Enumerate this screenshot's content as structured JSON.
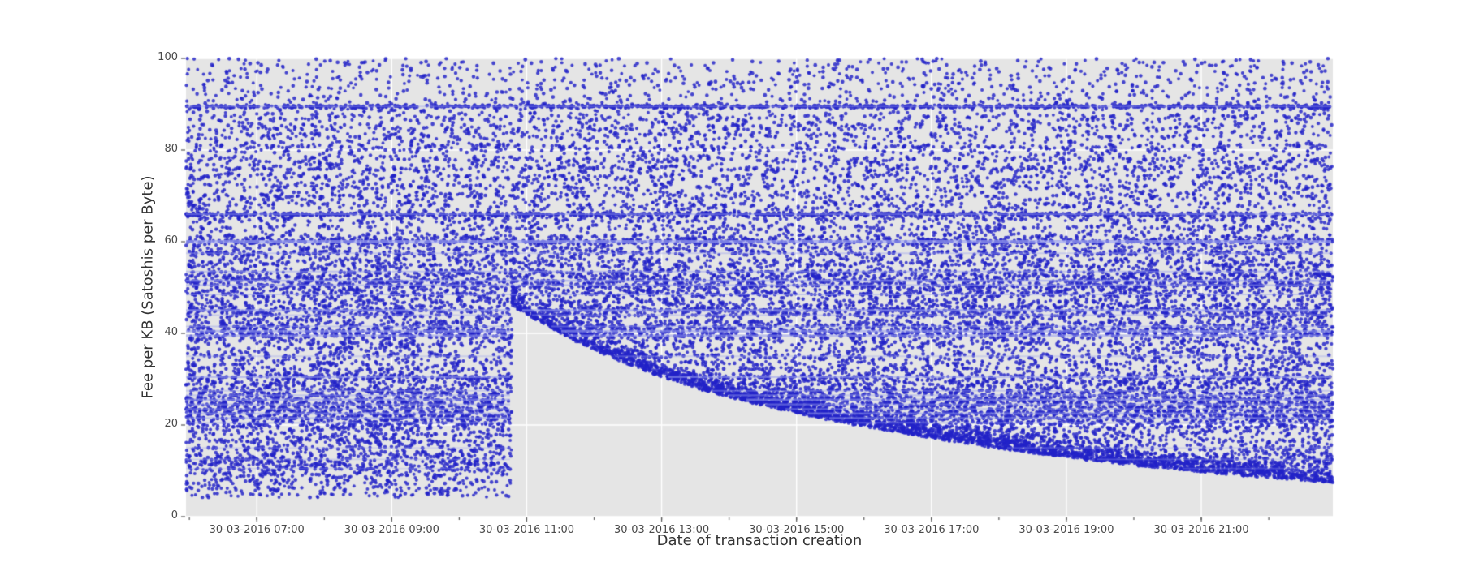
{
  "chart_data": {
    "type": "scatter",
    "title": "",
    "xlabel": "Date of transaction creation",
    "ylabel": "Fee per KB (Satoshis per Byte)",
    "x_date": "30-03-2016",
    "x_domain_hours": [
      5.95,
      22.95
    ],
    "ylim": [
      0,
      100
    ],
    "x_ticks": [
      {
        "hour": 7,
        "label": "30-03-2016 07:00"
      },
      {
        "hour": 9,
        "label": "30-03-2016 09:00"
      },
      {
        "hour": 11,
        "label": "30-03-2016 11:00"
      },
      {
        "hour": 13,
        "label": "30-03-2016 13:00"
      },
      {
        "hour": 15,
        "label": "30-03-2016 15:00"
      },
      {
        "hour": 17,
        "label": "30-03-2016 17:00"
      },
      {
        "hour": 19,
        "label": "30-03-2016 19:00"
      },
      {
        "hour": 21,
        "label": "30-03-2016 21:00"
      }
    ],
    "y_ticks": [
      {
        "value": 0,
        "label": "0"
      },
      {
        "value": 20,
        "label": "20"
      },
      {
        "value": 40,
        "label": "40"
      },
      {
        "value": 60,
        "label": "60"
      },
      {
        "value": 80,
        "label": "80"
      },
      {
        "value": 100,
        "label": "100"
      }
    ],
    "plot_bg": "#e5e5e5",
    "grid_color": "#ffffff",
    "marker_color": "#2222c8",
    "streak_color": "#9aa0ee",
    "marker_alpha": 0.82,
    "marker_radius": 2.1,
    "n_points": 30000,
    "edge_points": 2200,
    "uniform_fraction": 0.3,
    "min_fee": 4.2,
    "bands": [
      [
        89.5,
        6,
        0.18
      ],
      [
        87,
        1.2,
        0.5
      ],
      [
        85,
        1.5,
        0.5
      ],
      [
        83,
        1,
        0.5
      ],
      [
        80.5,
        2,
        0.5
      ],
      [
        78,
        1.5,
        0.45
      ],
      [
        76,
        1.8,
        0.45
      ],
      [
        74,
        1.2,
        0.45
      ],
      [
        72,
        1.5,
        0.45
      ],
      [
        70,
        1.8,
        0.5
      ],
      [
        68,
        1.2,
        0.4
      ],
      [
        66,
        6,
        0.2
      ],
      [
        65,
        1.8,
        0.4
      ],
      [
        63,
        1.2,
        0.4
      ],
      [
        61,
        1.5,
        0.4
      ],
      [
        60,
        5,
        0.35
      ],
      [
        58.5,
        1.5,
        0.4
      ],
      [
        57.5,
        2.5,
        0.35
      ],
      [
        56,
        1.5,
        0.4
      ],
      [
        55,
        2,
        0.35
      ],
      [
        53.5,
        2.5,
        0.35
      ],
      [
        52.5,
        2.5,
        0.35
      ],
      [
        51.5,
        3,
        0.3
      ],
      [
        50.5,
        3,
        0.3
      ],
      [
        49.5,
        2,
        0.35
      ],
      [
        48.5,
        2.5,
        0.35
      ],
      [
        47,
        1.5,
        0.4
      ],
      [
        46,
        2,
        0.35
      ],
      [
        45,
        4,
        0.3
      ],
      [
        44,
        2.5,
        0.35
      ],
      [
        42.5,
        2,
        0.4
      ],
      [
        41.5,
        2.5,
        0.4
      ],
      [
        40.5,
        3.5,
        0.4
      ],
      [
        39.5,
        3.5,
        0.4
      ],
      [
        38,
        2,
        0.45
      ],
      [
        36.5,
        1.5,
        0.45
      ],
      [
        35,
        2,
        0.45
      ],
      [
        33.5,
        1.5,
        0.45
      ],
      [
        32,
        1.8,
        0.45
      ],
      [
        30.5,
        3.5,
        0.4
      ],
      [
        29.5,
        2,
        0.4
      ],
      [
        28.5,
        2,
        0.4
      ],
      [
        27.5,
        2.5,
        0.35
      ],
      [
        26.5,
        3,
        0.35
      ],
      [
        25.5,
        3.5,
        0.35
      ],
      [
        24.5,
        3.5,
        0.35
      ],
      [
        23.5,
        3.5,
        0.35
      ],
      [
        22.5,
        3.8,
        0.35
      ],
      [
        21.5,
        3.8,
        0.35
      ],
      [
        20.5,
        3,
        0.4
      ],
      [
        19.5,
        2.2,
        0.45
      ],
      [
        18,
        2,
        0.45
      ],
      [
        16.5,
        2,
        0.45
      ],
      [
        15,
        2.2,
        0.45
      ],
      [
        13.5,
        2,
        0.45
      ],
      [
        12.5,
        2.2,
        0.4
      ],
      [
        11.5,
        2,
        0.4
      ],
      [
        10.5,
        2.2,
        0.4
      ],
      [
        9.5,
        1.5,
        0.45
      ],
      [
        8,
        1.2,
        0.5
      ],
      [
        6.5,
        1,
        0.5
      ],
      [
        5,
        0.8,
        0.5
      ]
    ],
    "light_streaks": [
      [
        89.5,
        2,
        0.4
      ],
      [
        66,
        2.2,
        0.45
      ],
      [
        60,
        4,
        0.7
      ],
      [
        57.5,
        2,
        0.4
      ],
      [
        53.5,
        2.2,
        0.5
      ],
      [
        51.5,
        2.8,
        0.6
      ],
      [
        50.5,
        2.2,
        0.5
      ],
      [
        48.5,
        2,
        0.45
      ],
      [
        45,
        3.2,
        0.65
      ],
      [
        44,
        2,
        0.4
      ],
      [
        41.5,
        2,
        0.45
      ],
      [
        40.5,
        3,
        0.6
      ],
      [
        39.5,
        2.6,
        0.55
      ],
      [
        35,
        1.8,
        0.35
      ],
      [
        30.5,
        2.8,
        0.55
      ],
      [
        27.5,
        2,
        0.4
      ],
      [
        26.5,
        2.2,
        0.45
      ],
      [
        25.5,
        2.8,
        0.55
      ],
      [
        24.5,
        2.2,
        0.45
      ],
      [
        23.5,
        2.2,
        0.45
      ],
      [
        22.5,
        2.8,
        0.5
      ],
      [
        21.5,
        2.6,
        0.5
      ],
      [
        20.5,
        2,
        0.4
      ],
      [
        15,
        1.8,
        0.3
      ],
      [
        12.5,
        1.8,
        0.35
      ],
      [
        10.5,
        1.8,
        0.3
      ]
    ],
    "gap": {
      "start_hour": 10.78,
      "boundary": [
        [
          10.78,
          46
        ],
        [
          11.0,
          44
        ],
        [
          11.3,
          41.5
        ],
        [
          11.6,
          39.2
        ],
        [
          12.0,
          36.3
        ],
        [
          12.4,
          33.8
        ],
        [
          12.8,
          31.5
        ],
        [
          13.2,
          29.5
        ],
        [
          13.6,
          27.6
        ],
        [
          14.0,
          26.0
        ],
        [
          14.5,
          24.2
        ],
        [
          15.0,
          22.5
        ],
        [
          15.5,
          21.0
        ],
        [
          16.0,
          19.6
        ],
        [
          16.5,
          18.3
        ],
        [
          17.0,
          17.1
        ],
        [
          17.5,
          15.9
        ],
        [
          18.0,
          14.8
        ],
        [
          18.5,
          13.8
        ],
        [
          19.0,
          12.9
        ],
        [
          19.5,
          12.0
        ],
        [
          20.0,
          11.2
        ],
        [
          20.5,
          10.4
        ],
        [
          21.0,
          9.7
        ],
        [
          21.5,
          9.0
        ],
        [
          22.0,
          8.4
        ],
        [
          22.5,
          7.8
        ],
        [
          22.95,
          7.3
        ]
      ]
    }
  }
}
